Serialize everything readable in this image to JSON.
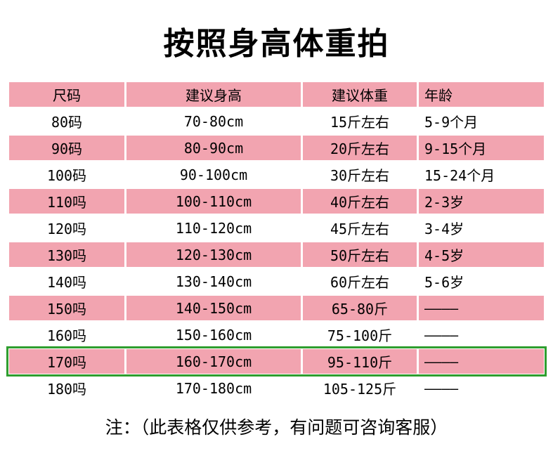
{
  "title": "按照身高体重拍",
  "colors": {
    "pink": "#F2A4B0",
    "highlight_border": "#2F9E2F"
  },
  "table": {
    "headers": [
      "尺码",
      "建议身高",
      "建议体重",
      "年龄"
    ],
    "rows": [
      {
        "size": "80码",
        "height": "70-80cm",
        "weight": "15斤左右",
        "age": "5-9个月",
        "highlight": false
      },
      {
        "size": "90码",
        "height": "80-90cm",
        "weight": "20斤左右",
        "age": "9-15个月",
        "highlight": false
      },
      {
        "size": "100码",
        "height": "90-100cm",
        "weight": "30斤左右",
        "age": "15-24个月",
        "highlight": false
      },
      {
        "size": "110吗",
        "height": "100-110cm",
        "weight": "40斤左右",
        "age": "2-3岁",
        "highlight": false
      },
      {
        "size": "120吗",
        "height": "110-120cm",
        "weight": "45斤左右",
        "age": "3-4岁",
        "highlight": false
      },
      {
        "size": "130吗",
        "height": "120-130cm",
        "weight": "50斤左右",
        "age": "4-5岁",
        "highlight": false
      },
      {
        "size": "140吗",
        "height": "130-140cm",
        "weight": "60斤左右",
        "age": "5-6岁",
        "highlight": false
      },
      {
        "size": "150吗",
        "height": "140-150cm",
        "weight": "65-80斤",
        "age": "————",
        "highlight": false
      },
      {
        "size": "160吗",
        "height": "150-160cm",
        "weight": "75-100斤",
        "age": "————",
        "highlight": false
      },
      {
        "size": "170吗",
        "height": "160-170cm",
        "weight": "95-110斤",
        "age": "————",
        "highlight": true
      },
      {
        "size": "180吗",
        "height": "170-180cm",
        "weight": "105-125斤",
        "age": "————",
        "highlight": false
      }
    ]
  },
  "footer_note": "注：（此表格仅供参考，有问题可咨询客服）"
}
